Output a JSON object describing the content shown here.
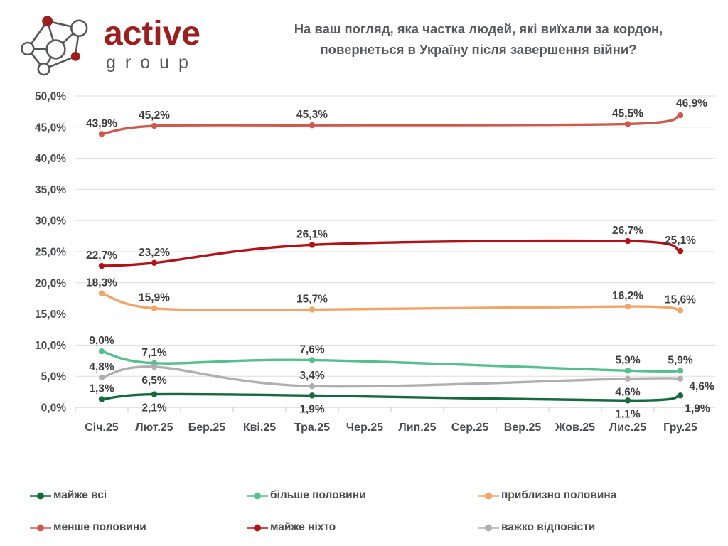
{
  "header": {
    "logo": {
      "brand": "active",
      "sub": "group",
      "brand_color": "#9B1F1F",
      "sub_color": "#55565A"
    },
    "title_line1": "На ваш погляд, яка частка людей, які виїхали за кордон,",
    "title_line2": "повернеться в Україну після завершення війни?"
  },
  "chart_data": {
    "type": "line",
    "title": "На ваш погляд, яка частка людей, які виїхали за кордон, повернеться в Україну після завершення війни?",
    "x_tick_labels": [
      "Січ.25",
      "Лют.25",
      "Бер.25",
      "Кві.25",
      "Тра.25",
      "Чер.25",
      "Лип.25",
      "Сер.25",
      "Вер.25",
      "Жов.25",
      "Лис.25",
      "Гру.25"
    ],
    "y_tick_labels": [
      "0,0%",
      "5,0%",
      "10,0%",
      "15,0%",
      "20,0%",
      "25,0%",
      "30,0%",
      "35,0%",
      "40,0%",
      "45,0%",
      "50,0%"
    ],
    "ylim": [
      0,
      50
    ],
    "y_step": 5,
    "grid": "horizontal",
    "legend_position": "bottom",
    "data_month_indices": [
      0,
      1,
      4,
      10,
      11
    ],
    "series": [
      {
        "name": "майже всі",
        "color": "#17693E",
        "values": [
          1.3,
          2.1,
          1.9,
          1.1,
          1.9
        ],
        "labels": [
          "1,3%",
          "2,1%",
          "1,9%",
          "1,1%",
          "1,9%"
        ],
        "label_placement": [
          "above",
          "below",
          "below",
          "below",
          "below-right"
        ]
      },
      {
        "name": "більше половини",
        "color": "#57BF8E",
        "values": [
          9.0,
          7.1,
          7.6,
          5.9,
          5.9
        ],
        "labels": [
          "9,0%",
          "7,1%",
          "7,6%",
          "5,9%",
          "5,9%"
        ],
        "label_placement": [
          "above",
          "above",
          "above",
          "above",
          "above"
        ]
      },
      {
        "name": "приблизно половина",
        "color": "#F0A56A",
        "values": [
          18.3,
          15.9,
          15.7,
          16.2,
          15.6
        ],
        "labels": [
          "18,3%",
          "15,9%",
          "15,7%",
          "16,2%",
          "15,6%"
        ],
        "label_placement": [
          "above",
          "above",
          "above",
          "above",
          "above"
        ]
      },
      {
        "name": "менше половини",
        "color": "#CD5A4E",
        "values": [
          43.9,
          45.2,
          45.3,
          45.5,
          46.9
        ],
        "labels": [
          "43,9%",
          "45,2%",
          "45,3%",
          "45,5%",
          "46,9%"
        ],
        "label_placement": [
          "above",
          "above",
          "above",
          "above",
          "above-right"
        ]
      },
      {
        "name": "майже ніхто",
        "color": "#B11217",
        "values": [
          22.7,
          23.2,
          26.1,
          26.7,
          25.1
        ],
        "labels": [
          "22,7%",
          "23,2%",
          "26,1%",
          "26,7%",
          "25,1%"
        ],
        "label_placement": [
          "above",
          "above",
          "above",
          "above",
          "above"
        ]
      },
      {
        "name": "важко відповісти",
        "color": "#AFAFAF",
        "values": [
          4.8,
          6.5,
          3.4,
          4.6,
          4.6
        ],
        "labels": [
          "4,8%",
          "6,5%",
          "3,4%",
          "4,6%",
          "4,6%"
        ],
        "label_placement": [
          "above",
          "below",
          "above",
          "below",
          "right"
        ]
      }
    ],
    "legend_rows": [
      [
        "майже всі",
        "більше половини",
        "приблизно половина"
      ],
      [
        "менше половини",
        "майже ніхто",
        "важко відповісти"
      ]
    ]
  }
}
